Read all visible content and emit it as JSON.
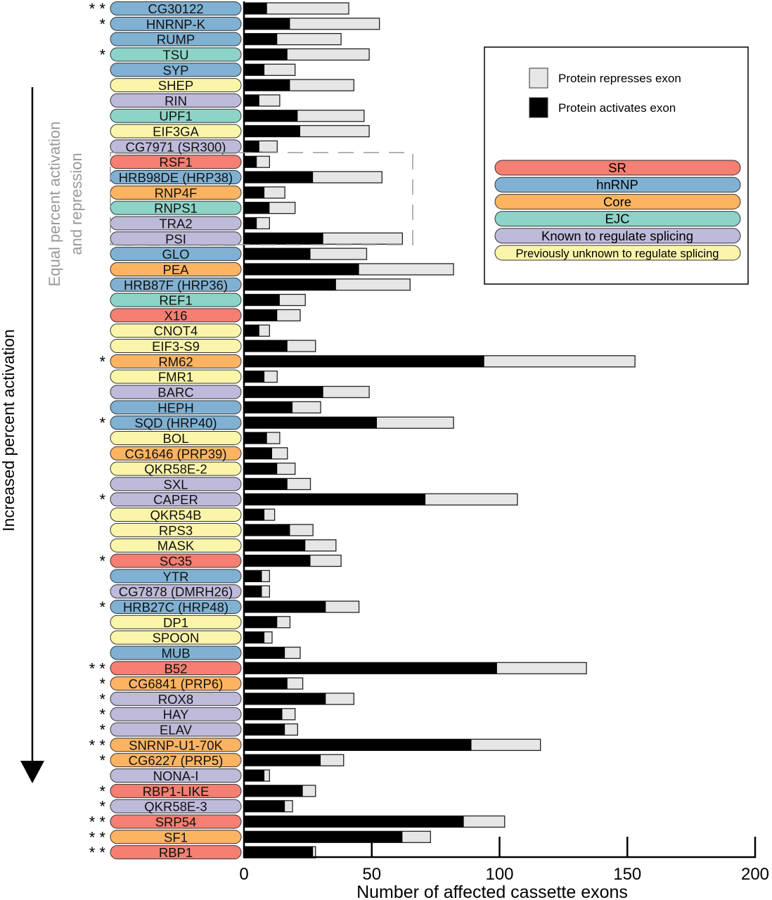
{
  "chart_data": {
    "type": "bar",
    "orientation": "horizontal",
    "stacked": true,
    "xlabel": "Number of affected cassette exons",
    "xlim": [
      0,
      200
    ],
    "xticks": [
      0,
      50,
      100,
      150,
      200
    ],
    "grid": false,
    "left_axis_label": "Increased percent activation",
    "box_annotation": "Equal percent activation and repression",
    "legend": {
      "placement": "top-right",
      "series": [
        {
          "name": "Protein represses exon",
          "color": "#e6e6e6"
        },
        {
          "name": "Protein activates exon",
          "color": "#000000"
        }
      ],
      "categories": [
        {
          "key": "SR",
          "label": "SR",
          "color": "#f47f72"
        },
        {
          "key": "hnRNP",
          "label": "hnRNP",
          "color": "#80b1d3"
        },
        {
          "key": "Core",
          "label": "Core",
          "color": "#fdb462"
        },
        {
          "key": "EJC",
          "label": "EJC",
          "color": "#8dd3c7"
        },
        {
          "key": "Known",
          "label": "Known to regulate splicing",
          "color": "#bebada"
        },
        {
          "key": "Unknown",
          "label": "Previously unknown to regulate splicing",
          "color": "#fbf5aa"
        }
      ]
    },
    "rows": [
      {
        "name": "CG30122",
        "cat": "hnRNP",
        "activates": 9,
        "total": 41,
        "sig": "* *"
      },
      {
        "name": "HNRNP-K",
        "cat": "hnRNP",
        "activates": 18,
        "total": 53,
        "sig": "*"
      },
      {
        "name": "RUMP",
        "cat": "hnRNP",
        "activates": 13,
        "total": 38,
        "sig": ""
      },
      {
        "name": "TSU",
        "cat": "EJC",
        "activates": 17,
        "total": 49,
        "sig": "*"
      },
      {
        "name": "SYP",
        "cat": "hnRNP",
        "activates": 8,
        "total": 20,
        "sig": ""
      },
      {
        "name": "SHEP",
        "cat": "Unknown",
        "activates": 18,
        "total": 43,
        "sig": ""
      },
      {
        "name": "RIN",
        "cat": "Known",
        "activates": 6,
        "total": 14,
        "sig": ""
      },
      {
        "name": "UPF1",
        "cat": "EJC",
        "activates": 21,
        "total": 47,
        "sig": ""
      },
      {
        "name": "EIF3GA",
        "cat": "Unknown",
        "activates": 22,
        "total": 49,
        "sig": ""
      },
      {
        "name": "CG7971 (SR300)",
        "cat": "Known",
        "activates": 6,
        "total": 13,
        "sig": ""
      },
      {
        "name": "RSF1",
        "cat": "SR",
        "activates": 5,
        "total": 10,
        "sig": ""
      },
      {
        "name": "HRB98DE (HRP38)",
        "cat": "hnRNP",
        "activates": 27,
        "total": 54,
        "sig": ""
      },
      {
        "name": "RNP4F",
        "cat": "Core",
        "activates": 8,
        "total": 16,
        "sig": ""
      },
      {
        "name": "RNPS1",
        "cat": "EJC",
        "activates": 10,
        "total": 20,
        "sig": ""
      },
      {
        "name": "TRA2",
        "cat": "Known",
        "activates": 5,
        "total": 10,
        "sig": ""
      },
      {
        "name": "PSI",
        "cat": "Known",
        "activates": 31,
        "total": 62,
        "sig": ""
      },
      {
        "name": "GLO",
        "cat": "hnRNP",
        "activates": 26,
        "total": 48,
        "sig": ""
      },
      {
        "name": "PEA",
        "cat": "Core",
        "activates": 45,
        "total": 82,
        "sig": ""
      },
      {
        "name": "HRB87F (HRP36)",
        "cat": "hnRNP",
        "activates": 36,
        "total": 65,
        "sig": ""
      },
      {
        "name": "REF1",
        "cat": "EJC",
        "activates": 14,
        "total": 24,
        "sig": ""
      },
      {
        "name": "X16",
        "cat": "SR",
        "activates": 13,
        "total": 22,
        "sig": ""
      },
      {
        "name": "CNOT4",
        "cat": "Unknown",
        "activates": 6,
        "total": 10,
        "sig": ""
      },
      {
        "name": "EIF3-S9",
        "cat": "Unknown",
        "activates": 17,
        "total": 28,
        "sig": ""
      },
      {
        "name": "RM62",
        "cat": "Core",
        "activates": 94,
        "total": 153,
        "sig": "*"
      },
      {
        "name": "FMR1",
        "cat": "Unknown",
        "activates": 8,
        "total": 13,
        "sig": ""
      },
      {
        "name": "BARC",
        "cat": "Known",
        "activates": 31,
        "total": 49,
        "sig": ""
      },
      {
        "name": "HEPH",
        "cat": "hnRNP",
        "activates": 19,
        "total": 30,
        "sig": ""
      },
      {
        "name": "SQD (HRP40)",
        "cat": "hnRNP",
        "activates": 52,
        "total": 82,
        "sig": "*"
      },
      {
        "name": "BOL",
        "cat": "Unknown",
        "activates": 9,
        "total": 14,
        "sig": ""
      },
      {
        "name": "CG1646 (PRP39)",
        "cat": "Core",
        "activates": 11,
        "total": 17,
        "sig": ""
      },
      {
        "name": "QKR58E-2",
        "cat": "Unknown",
        "activates": 13,
        "total": 20,
        "sig": ""
      },
      {
        "name": "SXL",
        "cat": "Known",
        "activates": 17,
        "total": 26,
        "sig": ""
      },
      {
        "name": "CAPER",
        "cat": "Known",
        "activates": 71,
        "total": 107,
        "sig": "*"
      },
      {
        "name": "QKR54B",
        "cat": "Unknown",
        "activates": 8,
        "total": 12,
        "sig": ""
      },
      {
        "name": "RPS3",
        "cat": "Unknown",
        "activates": 18,
        "total": 27,
        "sig": ""
      },
      {
        "name": "MASK",
        "cat": "Unknown",
        "activates": 24,
        "total": 36,
        "sig": ""
      },
      {
        "name": "SC35",
        "cat": "SR",
        "activates": 26,
        "total": 38,
        "sig": "*"
      },
      {
        "name": "YTR",
        "cat": "hnRNP",
        "activates": 7,
        "total": 10,
        "sig": ""
      },
      {
        "name": "CG7878 (DMRH26)",
        "cat": "Known",
        "activates": 7,
        "total": 10,
        "sig": ""
      },
      {
        "name": "HRB27C (HRP48)",
        "cat": "hnRNP",
        "activates": 32,
        "total": 45,
        "sig": "*"
      },
      {
        "name": "DP1",
        "cat": "Unknown",
        "activates": 13,
        "total": 18,
        "sig": ""
      },
      {
        "name": "SPOON",
        "cat": "Unknown",
        "activates": 8,
        "total": 11,
        "sig": ""
      },
      {
        "name": "MUB",
        "cat": "hnRNP",
        "activates": 16,
        "total": 22,
        "sig": ""
      },
      {
        "name": "B52",
        "cat": "SR",
        "activates": 99,
        "total": 134,
        "sig": "* *"
      },
      {
        "name": "CG6841 (PRP6)",
        "cat": "Core",
        "activates": 17,
        "total": 23,
        "sig": "*"
      },
      {
        "name": "ROX8",
        "cat": "Known",
        "activates": 32,
        "total": 43,
        "sig": "*"
      },
      {
        "name": "HAY",
        "cat": "Known",
        "activates": 15,
        "total": 20,
        "sig": "*"
      },
      {
        "name": "ELAV",
        "cat": "Known",
        "activates": 16,
        "total": 21,
        "sig": "*"
      },
      {
        "name": "SNRNP-U1-70K",
        "cat": "Core",
        "activates": 89,
        "total": 116,
        "sig": "* *"
      },
      {
        "name": "CG6227 (PRP5)",
        "cat": "Core",
        "activates": 30,
        "total": 39,
        "sig": "*"
      },
      {
        "name": "NONA-I",
        "cat": "Known",
        "activates": 8,
        "total": 10,
        "sig": ""
      },
      {
        "name": "RBP1-LIKE",
        "cat": "SR",
        "activates": 23,
        "total": 28,
        "sig": "*"
      },
      {
        "name": "QKR58E-3",
        "cat": "Known",
        "activates": 16,
        "total": 19,
        "sig": "*"
      },
      {
        "name": "SRP54",
        "cat": "SR",
        "activates": 86,
        "total": 102,
        "sig": "* *"
      },
      {
        "name": "SF1",
        "cat": "Core",
        "activates": 62,
        "total": 73,
        "sig": "* *"
      },
      {
        "name": "RBP1",
        "cat": "SR",
        "activates": 27,
        "total": 28,
        "sig": "* *"
      }
    ]
  }
}
